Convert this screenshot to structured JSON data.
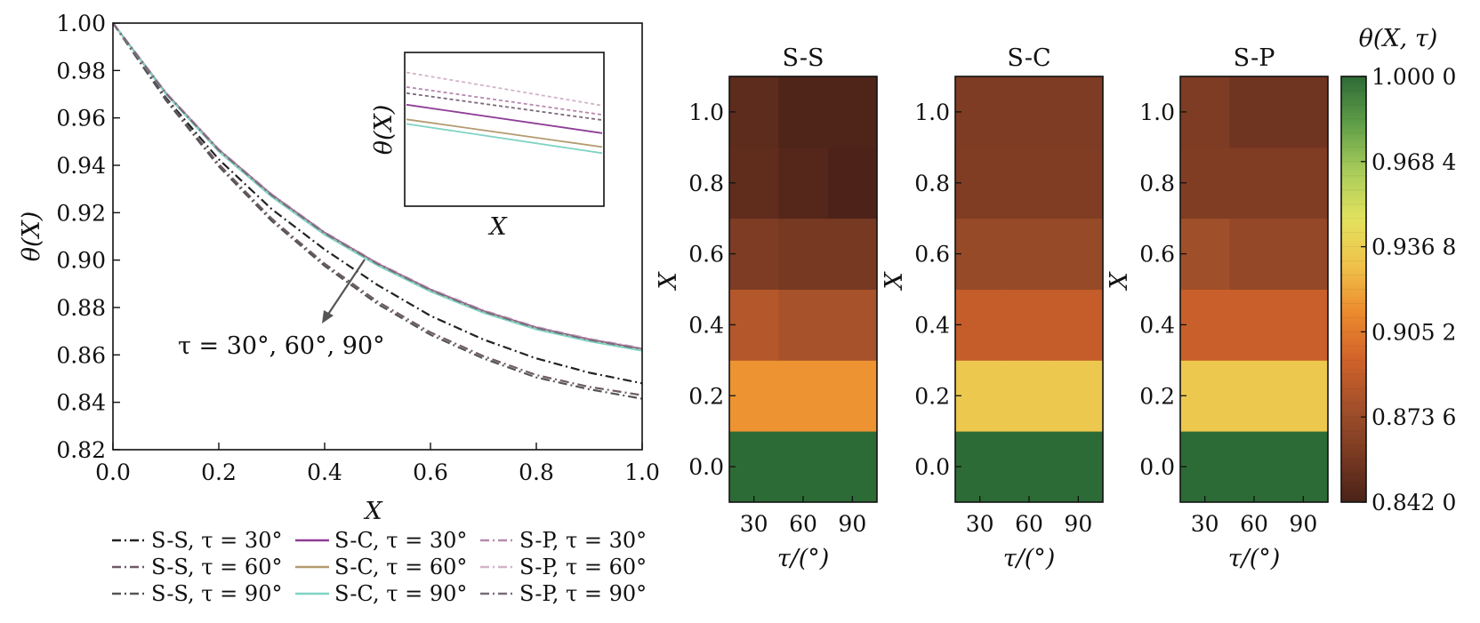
{
  "chart_data": [
    {
      "type": "line",
      "xlabel": "X",
      "ylabel": "θ(X)",
      "xlim": [
        0,
        1
      ],
      "ylim": [
        0.82,
        1.0
      ],
      "xticks": [
        "0.0",
        "0.2",
        "0.4",
        "0.6",
        "0.8",
        "1.0"
      ],
      "yticks": [
        "0.82",
        "0.84",
        "0.86",
        "0.88",
        "0.90",
        "0.92",
        "0.94",
        "0.96",
        "0.98",
        "1.00"
      ],
      "annotation": "τ = 30°, 60°, 90°",
      "x": [
        0,
        0.1,
        0.2,
        0.3,
        0.4,
        0.5,
        0.6,
        0.7,
        0.8,
        0.9,
        1.0
      ],
      "series": [
        {
          "name": "S-S, τ = 30°",
          "color": "#222222",
          "dash": "dashdot",
          "values": [
            1.0,
            0.9685,
            0.9425,
            0.9215,
            0.9045,
            0.8895,
            0.8765,
            0.8665,
            0.8585,
            0.8525,
            0.848
          ]
        },
        {
          "name": "S-S, τ = 60°",
          "color": "#6e5a66",
          "dash": "dashdot",
          "values": [
            1.0,
            0.968,
            0.9405,
            0.9175,
            0.8985,
            0.8825,
            0.8695,
            0.8595,
            0.8515,
            0.8465,
            0.843
          ]
        },
        {
          "name": "S-S, τ = 90°",
          "color": "#555555",
          "dash": "dashdot",
          "values": [
            1.0,
            0.9675,
            0.9395,
            0.9165,
            0.8975,
            0.8815,
            0.8685,
            0.8585,
            0.8505,
            0.8455,
            0.8415
          ]
        },
        {
          "name": "S-C, τ = 30°",
          "color": "#8e3d96",
          "dash": "solid",
          "values": [
            1.0,
            0.9705,
            0.9465,
            0.9275,
            0.9115,
            0.8985,
            0.8875,
            0.8785,
            0.8715,
            0.8665,
            0.8625
          ]
        },
        {
          "name": "S-C, τ = 60°",
          "color": "#b39a6e",
          "dash": "solid",
          "values": [
            1.0,
            0.9703,
            0.9462,
            0.9271,
            0.9111,
            0.8981,
            0.8871,
            0.8781,
            0.8711,
            0.8661,
            0.8621
          ]
        },
        {
          "name": "S-C, τ = 90°",
          "color": "#7fd3c4",
          "dash": "solid",
          "values": [
            1.0,
            0.9701,
            0.9459,
            0.9268,
            0.9108,
            0.8978,
            0.8868,
            0.8778,
            0.8708,
            0.8658,
            0.8618
          ]
        },
        {
          "name": "S-P, τ = 30°",
          "color": "#b889b0",
          "dash": "dashdot",
          "values": [
            1.0,
            0.9707,
            0.9468,
            0.9278,
            0.9118,
            0.8988,
            0.8878,
            0.8788,
            0.8718,
            0.8668,
            0.8628
          ]
        },
        {
          "name": "S-P, τ = 60°",
          "color": "#d3b3c8",
          "dash": "dashdot",
          "values": [
            1.0,
            0.9706,
            0.9466,
            0.9276,
            0.9116,
            0.8986,
            0.8876,
            0.8786,
            0.8716,
            0.8666,
            0.8626
          ]
        },
        {
          "name": "S-P, τ = 90°",
          "color": "#7a6a7a",
          "dash": "dashdot",
          "values": [
            1.0,
            0.9704,
            0.9464,
            0.9274,
            0.9114,
            0.8984,
            0.8874,
            0.8784,
            0.8714,
            0.8664,
            0.8624
          ]
        }
      ],
      "inset": {
        "xlabel": "X",
        "ylabel": "θ(X)",
        "series": [
          {
            "color": "#d3b3c8",
            "dash": "dashed",
            "y": [
              0.87,
              0.655
            ]
          },
          {
            "color": "#b889b0",
            "dash": "dashed",
            "y": [
              0.775,
              0.595
            ]
          },
          {
            "color": "#7a6a7a",
            "dash": "dashed",
            "y": [
              0.735,
              0.56
            ]
          },
          {
            "color": "#8e3d96",
            "dash": "solid",
            "y": [
              0.66,
              0.475
            ]
          },
          {
            "color": "#b39a6e",
            "dash": "solid",
            "y": [
              0.565,
              0.385
            ]
          },
          {
            "color": "#7fd3c4",
            "dash": "solid",
            "y": [
              0.535,
              0.345
            ]
          }
        ]
      }
    },
    {
      "type": "heatmap",
      "panels": [
        {
          "title": "S-S",
          "values": [
            [
              1.0,
              1.0,
              1.0
            ],
            [
              0.915,
              0.915,
              0.915
            ],
            [
              0.884,
              0.879,
              0.879
            ],
            [
              0.861,
              0.859,
              0.859
            ],
            [
              0.85,
              0.846,
              0.843
            ],
            [
              0.849,
              0.844,
              0.844
            ]
          ]
        },
        {
          "title": "S-C",
          "values": [
            [
              1.0,
              1.0,
              1.0
            ],
            [
              0.933,
              0.933,
              0.933
            ],
            [
              0.89,
              0.89,
              0.89
            ],
            [
              0.872,
              0.872,
              0.872
            ],
            [
              0.862,
              0.862,
              0.862
            ],
            [
              0.861,
              0.861,
              0.861
            ]
          ]
        },
        {
          "title": "S-P",
          "values": [
            [
              1.0,
              1.0,
              1.0
            ],
            [
              0.933,
              0.933,
              0.933
            ],
            [
              0.892,
              0.892,
              0.892
            ],
            [
              0.876,
              0.871,
              0.871
            ],
            [
              0.862,
              0.862,
              0.862
            ],
            [
              0.861,
              0.856,
              0.856
            ]
          ]
        }
      ],
      "rows_X": [
        0.0,
        0.2,
        0.4,
        0.6,
        0.8,
        1.0
      ],
      "cols_tau": [
        30,
        60,
        90
      ],
      "xlabel": "τ/(°)",
      "ylabel": "X",
      "xticks": [
        "30",
        "60",
        "90"
      ],
      "yticks": [
        "0.0",
        "0.2",
        "0.4",
        "0.6",
        "0.8",
        "1.0"
      ],
      "colorbar": {
        "title": "θ(X, τ)",
        "min": 0.842,
        "max": 1.0,
        "ticks": [
          "1.000 0",
          "0.968 4",
          "0.936 8",
          "0.905 2",
          "0.873 6",
          "0.842 0"
        ],
        "colors": [
          "#4a2218",
          "#7a3a22",
          "#a2502a",
          "#d0622a",
          "#ec8a2e",
          "#f0c24a",
          "#e2e25e",
          "#a8cc5a",
          "#5f9e48",
          "#2d6b36"
        ]
      }
    }
  ]
}
